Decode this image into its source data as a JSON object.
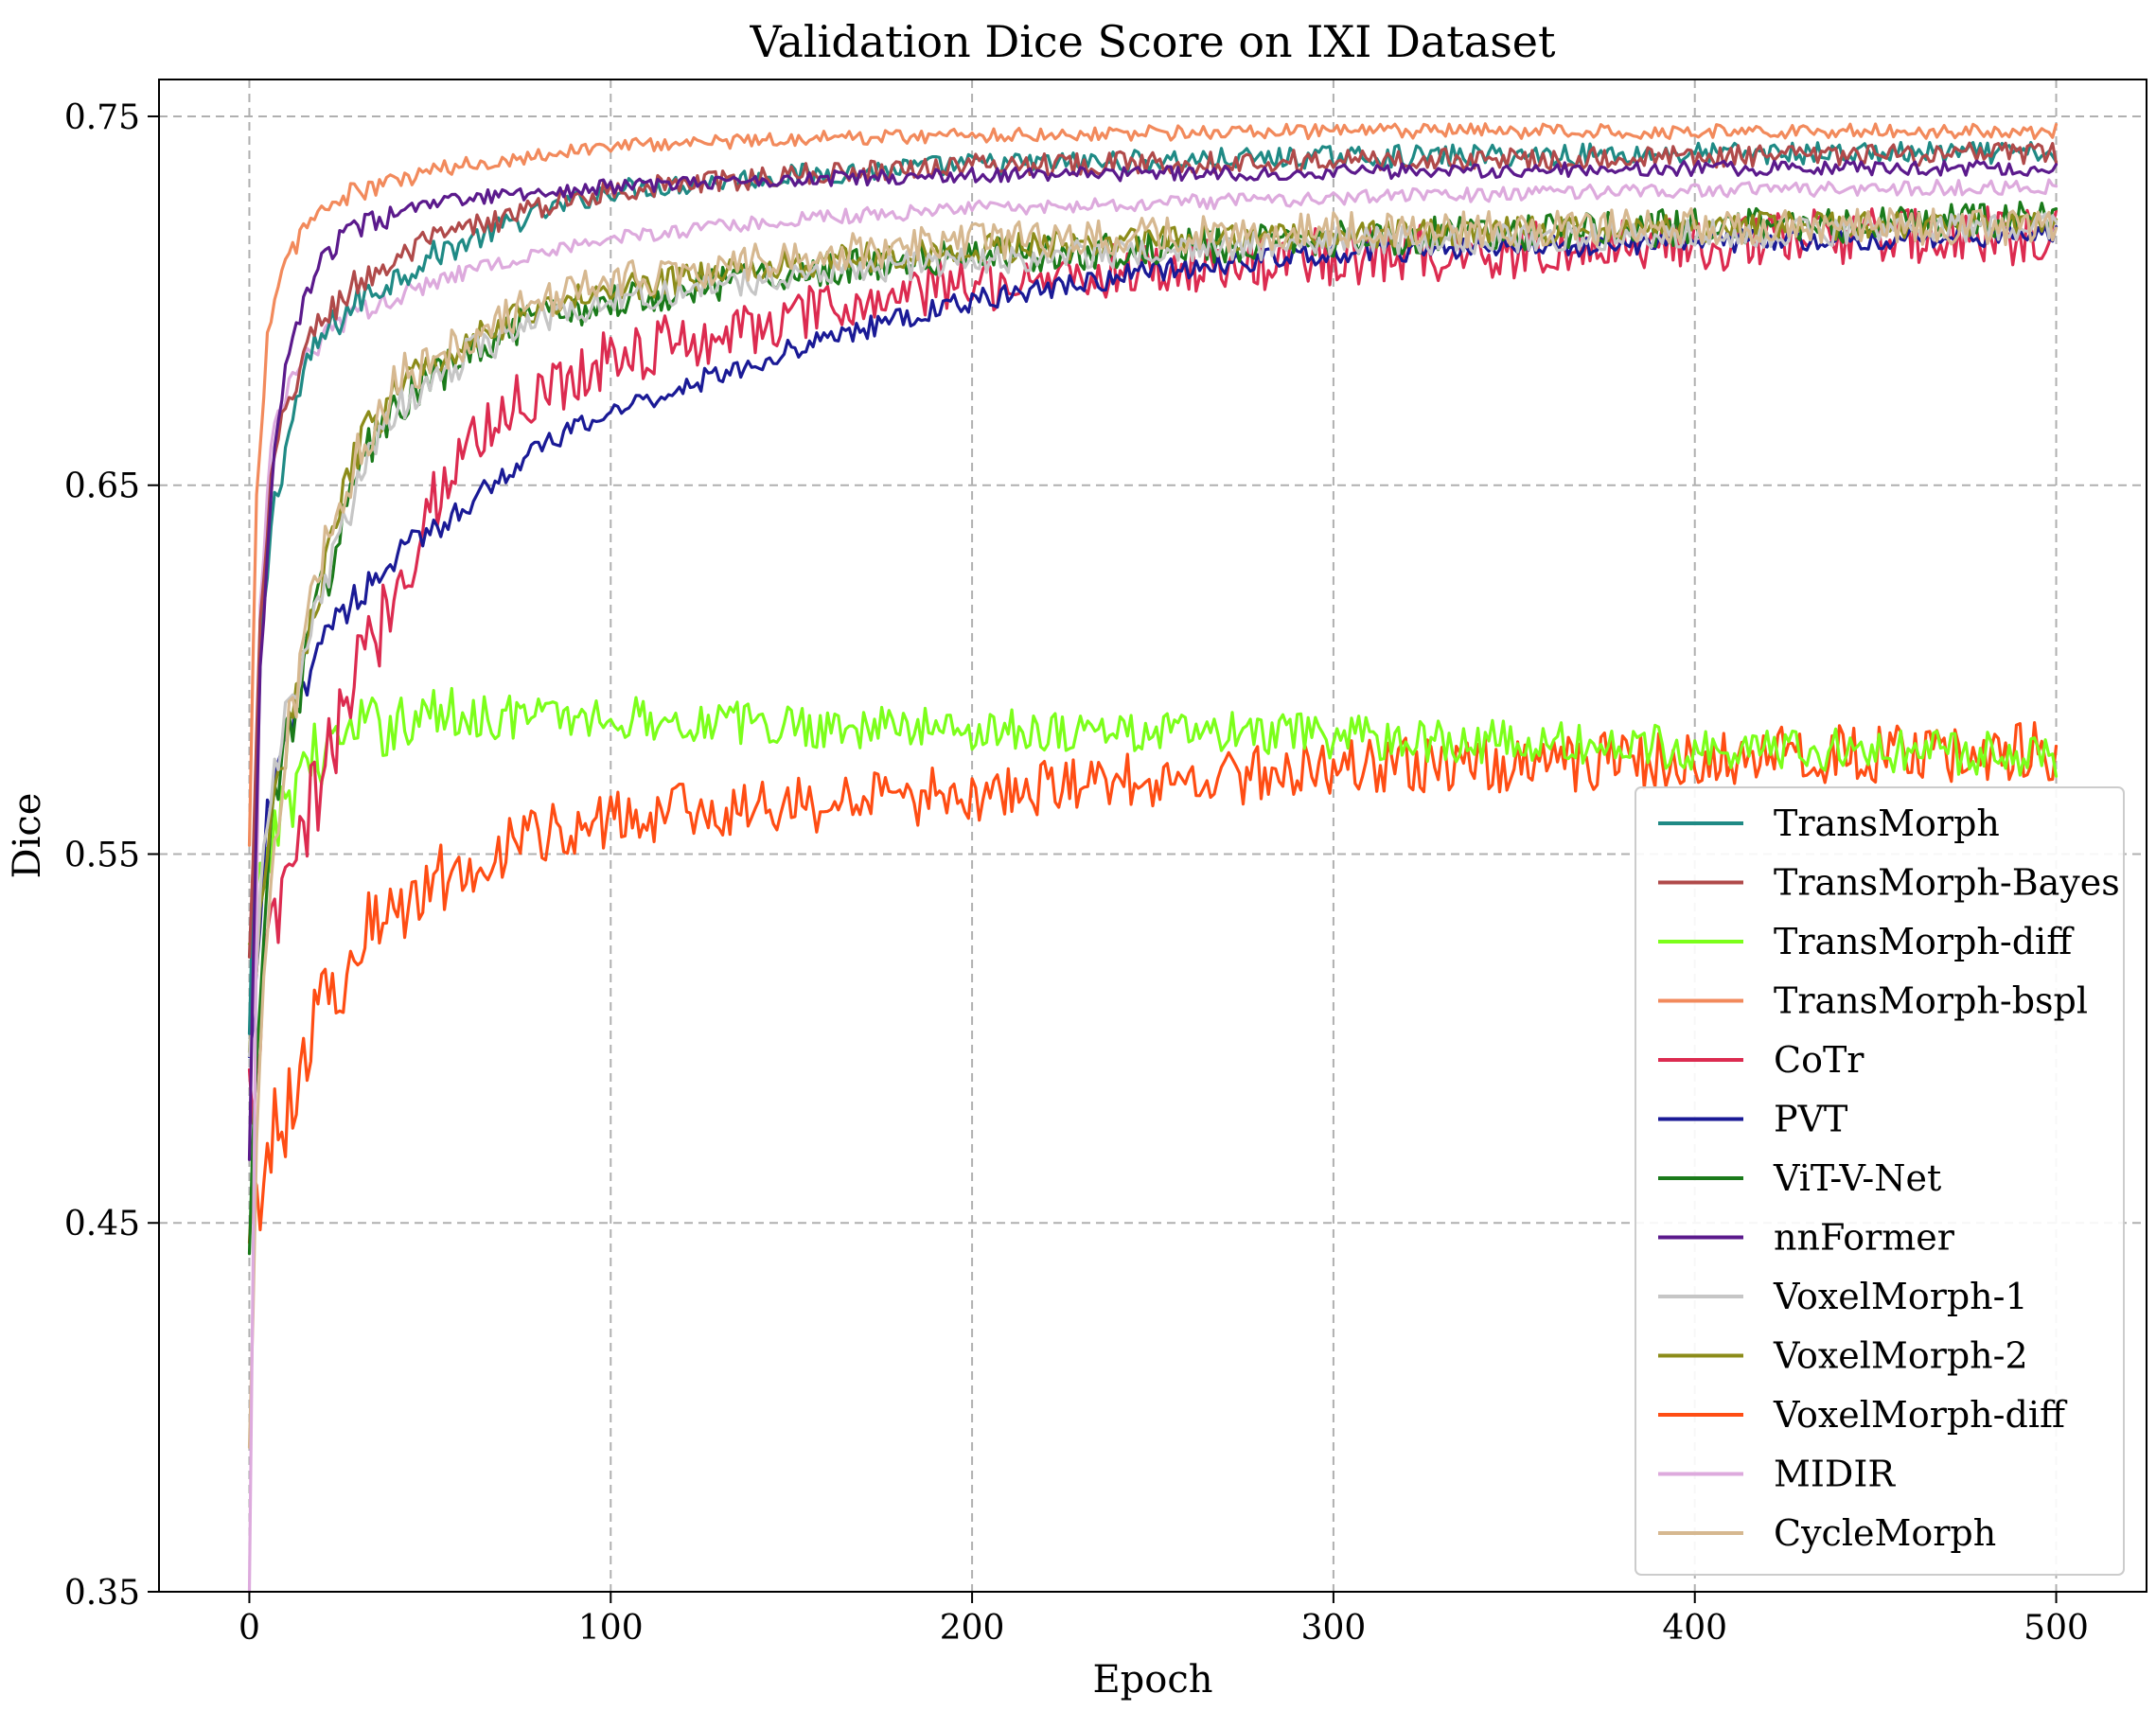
{
  "chart_data": {
    "type": "line",
    "title": "Validation Dice Score on IXI Dataset",
    "xlabel": "Epoch",
    "ylabel": "Dice",
    "xlim": [
      -25,
      525
    ],
    "ylim": [
      0.35,
      0.76
    ],
    "xticks": [
      0,
      100,
      200,
      300,
      400,
      500
    ],
    "yticks": [
      0.35,
      0.45,
      0.55,
      0.65,
      0.75
    ],
    "xtick_labels": [
      "0",
      "100",
      "200",
      "300",
      "400",
      "500"
    ],
    "ytick_labels": [
      "0.35",
      "0.45",
      "0.55",
      "0.65",
      "0.75"
    ],
    "grid": true,
    "legend_position": "lower-right",
    "series": [
      {
        "name": "TransMorph",
        "color": "#1f8a85",
        "noise": 0.003,
        "points": [
          [
            0,
            0.5
          ],
          [
            3,
            0.6
          ],
          [
            6,
            0.64
          ],
          [
            10,
            0.66
          ],
          [
            15,
            0.68
          ],
          [
            20,
            0.69
          ],
          [
            30,
            0.7
          ],
          [
            50,
            0.712
          ],
          [
            75,
            0.722
          ],
          [
            100,
            0.73
          ],
          [
            150,
            0.734
          ],
          [
            200,
            0.737
          ],
          [
            300,
            0.739
          ],
          [
            400,
            0.74
          ],
          [
            500,
            0.74
          ]
        ]
      },
      {
        "name": "TransMorph-Bayes",
        "color": "#b04a4a",
        "noise": 0.003,
        "points": [
          [
            0,
            0.52
          ],
          [
            3,
            0.61
          ],
          [
            6,
            0.65
          ],
          [
            10,
            0.67
          ],
          [
            15,
            0.685
          ],
          [
            20,
            0.695
          ],
          [
            30,
            0.705
          ],
          [
            50,
            0.716
          ],
          [
            75,
            0.724
          ],
          [
            100,
            0.73
          ],
          [
            150,
            0.734
          ],
          [
            200,
            0.737
          ],
          [
            300,
            0.738
          ],
          [
            400,
            0.739
          ],
          [
            500,
            0.74
          ]
        ]
      },
      {
        "name": "TransMorph-diff",
        "color": "#7cff1a",
        "noise": 0.006,
        "points": [
          [
            0,
            0.52
          ],
          [
            5,
            0.55
          ],
          [
            15,
            0.575
          ],
          [
            30,
            0.583
          ],
          [
            50,
            0.588
          ],
          [
            100,
            0.587
          ],
          [
            150,
            0.585
          ],
          [
            200,
            0.584
          ],
          [
            250,
            0.583
          ],
          [
            300,
            0.582
          ],
          [
            350,
            0.58
          ],
          [
            400,
            0.579
          ],
          [
            450,
            0.578
          ],
          [
            500,
            0.577
          ]
        ]
      },
      {
        "name": "TransMorph-bspl",
        "color": "#f28a5c",
        "noise": 0.002,
        "points": [
          [
            0,
            0.55
          ],
          [
            2,
            0.65
          ],
          [
            5,
            0.69
          ],
          [
            10,
            0.71
          ],
          [
            15,
            0.72
          ],
          [
            25,
            0.728
          ],
          [
            50,
            0.735
          ],
          [
            75,
            0.739
          ],
          [
            100,
            0.742
          ],
          [
            150,
            0.744
          ],
          [
            200,
            0.745
          ],
          [
            300,
            0.746
          ],
          [
            400,
            0.746
          ],
          [
            500,
            0.746
          ]
        ]
      },
      {
        "name": "CoTr",
        "color": "#dc2b50",
        "noise": 0.008,
        "points": [
          [
            0,
            0.48
          ],
          [
            5,
            0.52
          ],
          [
            10,
            0.54
          ],
          [
            20,
            0.57
          ],
          [
            30,
            0.6
          ],
          [
            40,
            0.62
          ],
          [
            50,
            0.645
          ],
          [
            60,
            0.66
          ],
          [
            70,
            0.67
          ],
          [
            100,
            0.685
          ],
          [
            150,
            0.695
          ],
          [
            200,
            0.705
          ],
          [
            300,
            0.712
          ],
          [
            400,
            0.716
          ],
          [
            500,
            0.718
          ]
        ]
      },
      {
        "name": "PVT",
        "color": "#1a1a96",
        "noise": 0.003,
        "points": [
          [
            0,
            0.49
          ],
          [
            5,
            0.56
          ],
          [
            10,
            0.58
          ],
          [
            20,
            0.61
          ],
          [
            40,
            0.63
          ],
          [
            60,
            0.645
          ],
          [
            80,
            0.66
          ],
          [
            100,
            0.67
          ],
          [
            130,
            0.68
          ],
          [
            160,
            0.69
          ],
          [
            200,
            0.7
          ],
          [
            250,
            0.708
          ],
          [
            300,
            0.713
          ],
          [
            400,
            0.716
          ],
          [
            500,
            0.718
          ]
        ]
      },
      {
        "name": "ViT-V-Net",
        "color": "#1a7a1a",
        "noise": 0.005,
        "points": [
          [
            0,
            0.45
          ],
          [
            5,
            0.55
          ],
          [
            10,
            0.58
          ],
          [
            20,
            0.62
          ],
          [
            30,
            0.655
          ],
          [
            40,
            0.67
          ],
          [
            60,
            0.685
          ],
          [
            80,
            0.695
          ],
          [
            100,
            0.7
          ],
          [
            150,
            0.708
          ],
          [
            200,
            0.712
          ],
          [
            300,
            0.717
          ],
          [
            400,
            0.72
          ],
          [
            500,
            0.722
          ]
        ]
      },
      {
        "name": "nnFormer",
        "color": "#5b1a8c",
        "noise": 0.002,
        "points": [
          [
            0,
            0.47
          ],
          [
            3,
            0.6
          ],
          [
            6,
            0.65
          ],
          [
            10,
            0.68
          ],
          [
            15,
            0.7
          ],
          [
            20,
            0.712
          ],
          [
            30,
            0.72
          ],
          [
            50,
            0.726
          ],
          [
            75,
            0.729
          ],
          [
            100,
            0.731
          ],
          [
            150,
            0.733
          ],
          [
            200,
            0.734
          ],
          [
            300,
            0.735
          ],
          [
            400,
            0.736
          ],
          [
            500,
            0.736
          ]
        ]
      },
      {
        "name": "VoxelMorph-1",
        "color": "#c6c6c6",
        "noise": 0.004,
        "points": [
          [
            0,
            0.5
          ],
          [
            5,
            0.56
          ],
          [
            10,
            0.585
          ],
          [
            20,
            0.62
          ],
          [
            30,
            0.65
          ],
          [
            40,
            0.67
          ],
          [
            60,
            0.685
          ],
          [
            80,
            0.695
          ],
          [
            100,
            0.7
          ],
          [
            150,
            0.707
          ],
          [
            200,
            0.711
          ],
          [
            300,
            0.716
          ],
          [
            400,
            0.718
          ],
          [
            500,
            0.72
          ]
        ]
      },
      {
        "name": "VoxelMorph-2",
        "color": "#8c8c1a",
        "noise": 0.004,
        "points": [
          [
            0,
            0.5
          ],
          [
            5,
            0.55
          ],
          [
            10,
            0.58
          ],
          [
            20,
            0.625
          ],
          [
            30,
            0.66
          ],
          [
            40,
            0.675
          ],
          [
            60,
            0.69
          ],
          [
            80,
            0.698
          ],
          [
            100,
            0.703
          ],
          [
            150,
            0.71
          ],
          [
            200,
            0.714
          ],
          [
            300,
            0.718
          ],
          [
            400,
            0.72
          ],
          [
            500,
            0.721
          ]
        ]
      },
      {
        "name": "VoxelMorph-diff",
        "color": "#ff4d14",
        "noise": 0.008,
        "points": [
          [
            0,
            0.45
          ],
          [
            5,
            0.47
          ],
          [
            10,
            0.48
          ],
          [
            20,
            0.51
          ],
          [
            30,
            0.525
          ],
          [
            40,
            0.535
          ],
          [
            60,
            0.548
          ],
          [
            80,
            0.555
          ],
          [
            100,
            0.56
          ],
          [
            150,
            0.563
          ],
          [
            200,
            0.566
          ],
          [
            250,
            0.57
          ],
          [
            300,
            0.573
          ],
          [
            400,
            0.576
          ],
          [
            500,
            0.578
          ]
        ]
      },
      {
        "name": "MIDIR",
        "color": "#ddaadd",
        "noise": 0.002,
        "points": [
          [
            0,
            0.35
          ],
          [
            3,
            0.62
          ],
          [
            6,
            0.66
          ],
          [
            10,
            0.675
          ],
          [
            20,
            0.69
          ],
          [
            30,
            0.697
          ],
          [
            50,
            0.705
          ],
          [
            75,
            0.712
          ],
          [
            100,
            0.717
          ],
          [
            150,
            0.722
          ],
          [
            200,
            0.725
          ],
          [
            300,
            0.728
          ],
          [
            400,
            0.73
          ],
          [
            500,
            0.731
          ]
        ]
      },
      {
        "name": "CycleMorph",
        "color": "#d6b890",
        "noise": 0.005,
        "points": [
          [
            0,
            0.39
          ],
          [
            3,
            0.5
          ],
          [
            10,
            0.58
          ],
          [
            20,
            0.63
          ],
          [
            30,
            0.66
          ],
          [
            40,
            0.677
          ],
          [
            60,
            0.69
          ],
          [
            80,
            0.7
          ],
          [
            100,
            0.705
          ],
          [
            150,
            0.712
          ],
          [
            200,
            0.716
          ],
          [
            300,
            0.719
          ],
          [
            400,
            0.72
          ],
          [
            500,
            0.72
          ]
        ]
      }
    ]
  }
}
